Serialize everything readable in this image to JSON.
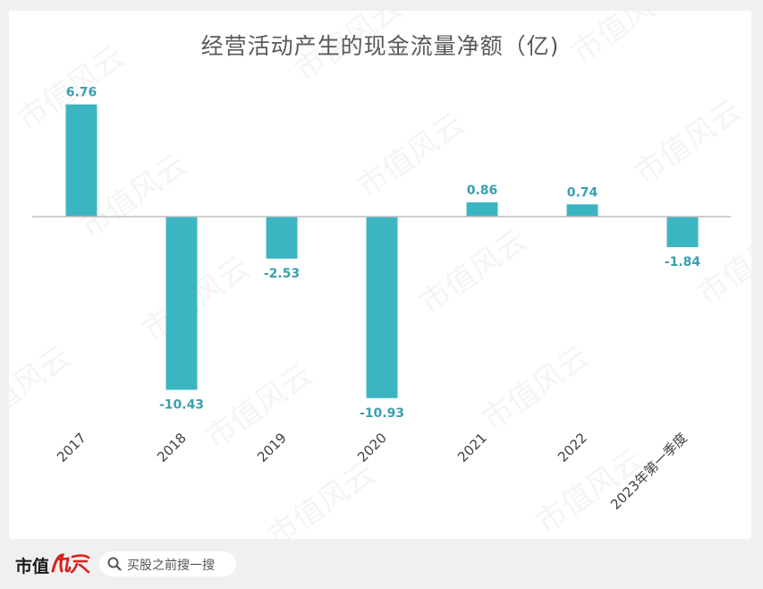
{
  "colors": {
    "bar": "#3cb5c2",
    "label": "#3a9fb0",
    "axis_text": "#404040",
    "background": "#f0f0f0",
    "card": "#ffffff",
    "logo_red": "#d81e1e"
  },
  "chart_data": {
    "type": "bar",
    "title": "经营活动产生的现金流量净额（亿)",
    "categories": [
      "2017",
      "2018",
      "2019",
      "2020",
      "2021",
      "2022",
      "2023年第一季度"
    ],
    "values": [
      6.76,
      -10.43,
      -2.53,
      -10.93,
      0.86,
      0.74,
      -1.84
    ],
    "value_labels": [
      "6.76",
      "-10.43",
      "-2.53",
      "-10.93",
      "0.86",
      "0.74",
      "-1.84"
    ],
    "xlabel": "",
    "ylabel": "",
    "ylim": [
      -10.93,
      6.76
    ],
    "grid": false,
    "legend": "none",
    "x_tick_rotation": "-45deg"
  },
  "watermark": {
    "text": "市值风云"
  },
  "footer": {
    "logo_text": "市值",
    "logo_mark_text": "风云",
    "logo_icon": "brand-calligraphy-icon",
    "search_icon": "search-icon",
    "search_placeholder": "买股之前搜一搜"
  }
}
